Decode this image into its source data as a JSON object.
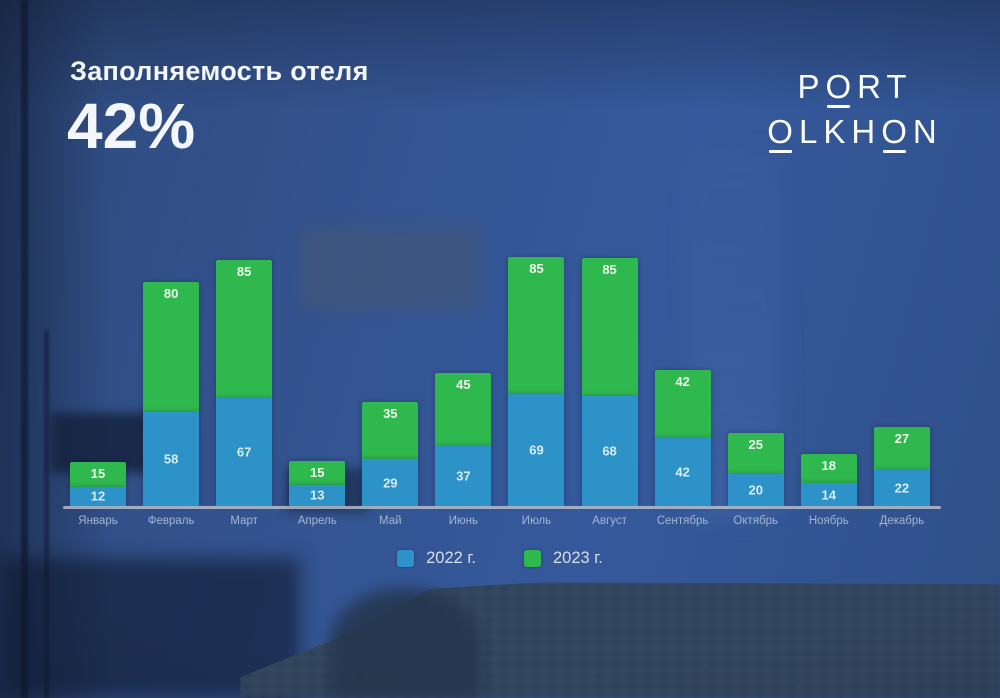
{
  "header": {
    "title": "Заполняемость отеля",
    "occupancy_value": "42%"
  },
  "logo": {
    "line1": "PORT",
    "line2": "OLKHON"
  },
  "chart_data": {
    "type": "bar",
    "stacked": true,
    "title": "Заполняемость отеля",
    "subtitle": "42%",
    "xlabel": "",
    "ylabel": "",
    "grid": false,
    "legend_position": "bottom",
    "ylim": [
      0,
      155
    ],
    "categories": [
      "Январь",
      "Февраль",
      "Март",
      "Апрель",
      "Май",
      "Июнь",
      "Июль",
      "Август",
      "Сентябрь",
      "Октябрь",
      "Ноябрь",
      "Декабрь"
    ],
    "series": [
      {
        "name": "2022 г.",
        "color": "#2d92c8",
        "values": [
          12,
          58,
          67,
          13,
          29,
          37,
          69,
          68,
          42,
          20,
          14,
          22
        ]
      },
      {
        "name": "2023 г.",
        "color": "#2fb84e",
        "values": [
          15,
          80,
          85,
          15,
          35,
          45,
          85,
          85,
          42,
          25,
          18,
          27
        ]
      }
    ]
  },
  "colors": {
    "background_blue": "#33528d",
    "bar_2022": "#2d92c8",
    "bar_2023": "#2fb84e",
    "text_light": "#f3f6fa",
    "axis_line": "#c6ccd6"
  }
}
